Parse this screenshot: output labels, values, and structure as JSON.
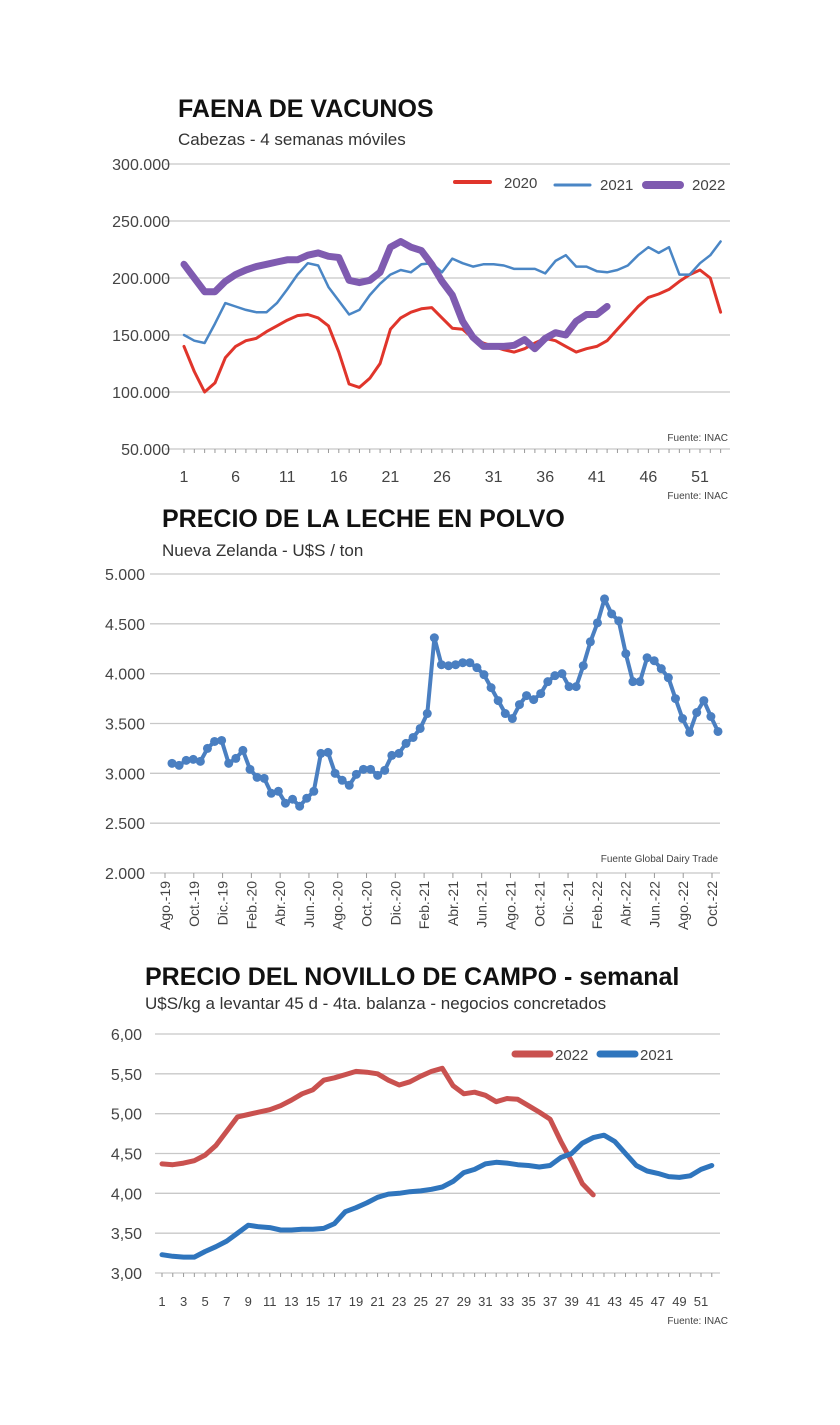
{
  "chart_data": [
    {
      "type": "line",
      "title": "FAENA DE VACUNOS",
      "subtitle": "Cabezas - 4 semanas móviles",
      "source": "Fuente: INAC",
      "source2": "Fuente: INAC",
      "ylim": [
        50000,
        300000
      ],
      "yticks": [
        "300.000",
        "250.000",
        "200.000",
        "150.000",
        "100.000",
        "50.000"
      ],
      "xlim": [
        1,
        53
      ],
      "xticks": [
        "1",
        "6",
        "11",
        "16",
        "21",
        "26",
        "31",
        "36",
        "41",
        "46",
        "51"
      ],
      "grid": true,
      "legend": "top-right",
      "series": [
        {
          "name": "2020",
          "color": "#e0352b",
          "values": [
            140000,
            118000,
            100000,
            108000,
            130000,
            140000,
            145000,
            147000,
            153000,
            158000,
            163000,
            167000,
            168000,
            165000,
            158000,
            135000,
            107000,
            104000,
            112000,
            125000,
            155000,
            165000,
            170000,
            173000,
            174000,
            165000,
            156000,
            155000,
            147000,
            143000,
            140000,
            137000,
            135000,
            138000,
            143000,
            147000,
            145000,
            140000,
            135000,
            138000,
            140000,
            145000,
            155000,
            165000,
            175000,
            183000,
            186000,
            190000,
            197000,
            203000,
            207000,
            200000,
            170000
          ]
        },
        {
          "name": "2021",
          "color": "#4a86c5",
          "values": [
            150000,
            145000,
            143000,
            160000,
            178000,
            175000,
            172000,
            170000,
            170000,
            178000,
            190000,
            203000,
            213000,
            211000,
            192000,
            180000,
            168000,
            172000,
            185000,
            195000,
            203000,
            207000,
            205000,
            212000,
            213000,
            205000,
            217000,
            213000,
            210000,
            212000,
            212000,
            211000,
            208000,
            208000,
            208000,
            204000,
            215000,
            220000,
            210000,
            210000,
            206000,
            205000,
            207000,
            211000,
            220000,
            227000,
            222000,
            227000,
            203000,
            203000,
            213000,
            220000,
            232000
          ]
        },
        {
          "name": "2022",
          "color": "#7f5bb0",
          "values": [
            212000,
            200000,
            188000,
            188000,
            197000,
            203000,
            207000,
            210000,
            212000,
            214000,
            216000,
            216000,
            220000,
            222000,
            219000,
            218000,
            198000,
            196000,
            198000,
            205000,
            227000,
            232000,
            227000,
            224000,
            212000,
            197000,
            185000,
            162000,
            148000,
            140000,
            140000,
            140000,
            141000,
            146000,
            138000,
            147000,
            152000,
            150000,
            162000,
            168000,
            168000,
            175000
          ]
        }
      ]
    },
    {
      "type": "line",
      "title": "PRECIO DE LA LECHE EN POLVO",
      "subtitle": "Nueva Zelanda - U$S / ton",
      "source": "Fuente Global Dairy Trade",
      "ylim": [
        2000,
        5000
      ],
      "yticks": [
        "5.000",
        "4.500",
        "4.000",
        "3.500",
        "3.000",
        "2.500",
        "2.000"
      ],
      "xticks": [
        "Ago.-19",
        "Oct.-19",
        "Dic.-19",
        "Feb.-20",
        "Abr.-20",
        "Jun.-20",
        "Ago.-20",
        "Oct.-20",
        "Dic.-20",
        "Feb.-21",
        "Abr.-21",
        "Jun.-21",
        "Ago.-21",
        "Oct.-21",
        "Dic.-21",
        "Feb.-22",
        "Abr.-22",
        "Jun.-22",
        "Ago.-22",
        "Oct.-22"
      ],
      "grid": true,
      "series": [
        {
          "color": "#4a7fc1",
          "markers": true,
          "values": [
            3100,
            3080,
            3130,
            3140,
            3120,
            3250,
            3320,
            3330,
            3100,
            3150,
            3230,
            3040,
            2960,
            2950,
            2800,
            2820,
            2700,
            2740,
            2670,
            2750,
            2820,
            3200,
            3210,
            3000,
            2930,
            2880,
            2990,
            3040,
            3040,
            2980,
            3030,
            3180,
            3200,
            3300,
            3360,
            3450,
            3600,
            4360,
            4090,
            4080,
            4090,
            4110,
            4110,
            4060,
            3990,
            3860,
            3730,
            3600,
            3550,
            3690,
            3780,
            3740,
            3800,
            3920,
            3980,
            4000,
            3870,
            3870,
            4080,
            4320,
            4510,
            4750,
            4600,
            4530,
            4200,
            3920,
            3920,
            4160,
            4130,
            4050,
            3960,
            3750,
            3550,
            3410,
            3610,
            3730,
            3570,
            3420
          ]
        }
      ]
    },
    {
      "type": "line",
      "title": "PRECIO DEL NOVILLO DE CAMPO - semanal",
      "subtitle": "U$S/kg a levantar 45 d - 4ta. balanza - negocios concretados",
      "source": "Fuente: INAC",
      "ylim": [
        3.0,
        6.0
      ],
      "yticks": [
        "6,00",
        "5,50",
        "5,00",
        "4,50",
        "4,00",
        "3,50",
        "3,00"
      ],
      "xlim": [
        1,
        52
      ],
      "xticks": [
        "1",
        "3",
        "5",
        "7",
        "9",
        "11",
        "13",
        "15",
        "17",
        "19",
        "21",
        "23",
        "25",
        "27",
        "29",
        "31",
        "33",
        "35",
        "37",
        "39",
        "41",
        "43",
        "45",
        "47",
        "49",
        "51"
      ],
      "grid": true,
      "legend": "top-right",
      "series": [
        {
          "name": "2022",
          "color": "#c9514f",
          "values": [
            4.37,
            4.36,
            4.38,
            4.41,
            4.48,
            4.6,
            4.78,
            4.96,
            4.99,
            5.02,
            5.05,
            5.1,
            5.17,
            5.25,
            5.3,
            5.42,
            5.45,
            5.49,
            5.53,
            5.52,
            5.5,
            5.42,
            5.36,
            5.4,
            5.47,
            5.53,
            5.57,
            5.35,
            5.25,
            5.27,
            5.23,
            5.15,
            5.19,
            5.18,
            5.1,
            5.02,
            4.93,
            4.65,
            4.4,
            4.12,
            3.98
          ]
        },
        {
          "name": "2021",
          "color": "#2f75bd",
          "values": [
            3.23,
            3.21,
            3.2,
            3.2,
            3.27,
            3.33,
            3.4,
            3.5,
            3.6,
            3.58,
            3.57,
            3.54,
            3.54,
            3.55,
            3.55,
            3.56,
            3.62,
            3.77,
            3.82,
            3.88,
            3.95,
            3.99,
            4.0,
            4.02,
            4.03,
            4.05,
            4.08,
            4.15,
            4.26,
            4.3,
            4.37,
            4.39,
            4.38,
            4.36,
            4.35,
            4.33,
            4.35,
            4.45,
            4.5,
            4.63,
            4.7,
            4.73,
            4.65,
            4.5,
            4.35,
            4.28,
            4.25,
            4.21,
            4.2,
            4.22,
            4.3,
            4.35
          ]
        }
      ]
    }
  ]
}
